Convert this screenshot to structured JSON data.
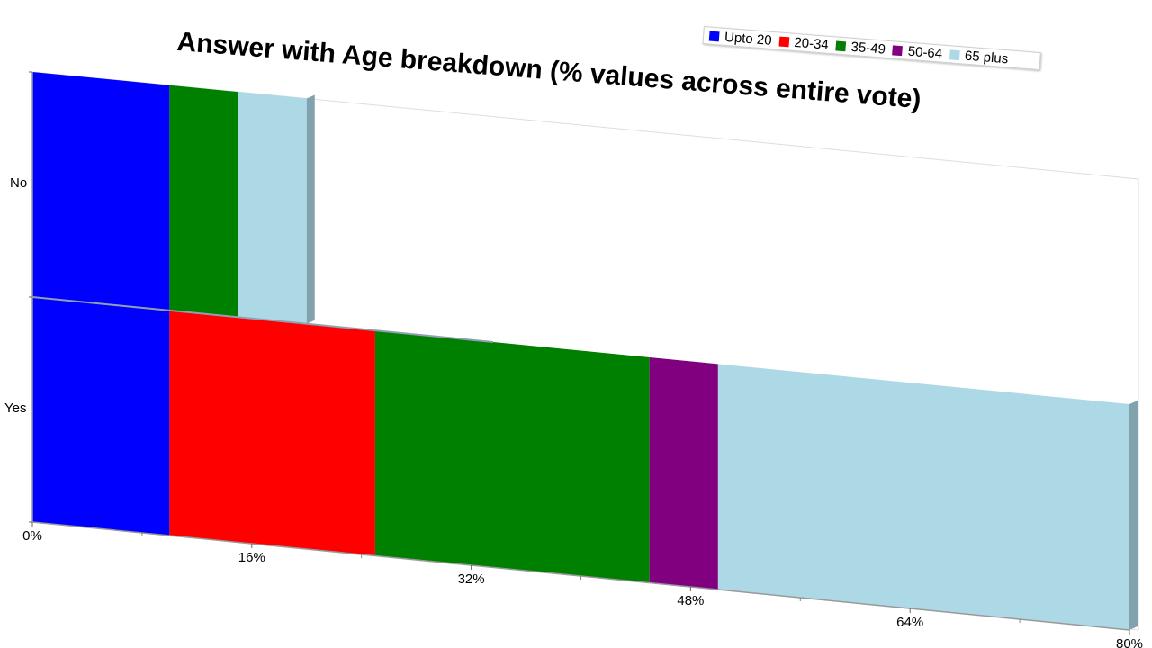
{
  "chart_data": {
    "type": "bar",
    "orientation": "horizontal",
    "stacked": true,
    "title": "Answer with Age breakdown (% values across entire vote)",
    "categories": [
      "Yes",
      "No"
    ],
    "series": [
      {
        "name": "Upto 20",
        "color": "#0000ff",
        "values": [
          10,
          10
        ]
      },
      {
        "name": "20-34",
        "color": "#ff0000",
        "values": [
          15,
          0
        ]
      },
      {
        "name": "35-49",
        "color": "#008000",
        "values": [
          20,
          5
        ]
      },
      {
        "name": "50-64",
        "color": "#800080",
        "values": [
          5,
          0
        ]
      },
      {
        "name": "65 plus",
        "color": "#add8e6",
        "values": [
          30,
          5
        ]
      }
    ],
    "xlim": [
      0,
      80
    ],
    "xticks": [
      "0%",
      "16%",
      "32%",
      "48%",
      "64%",
      "80%"
    ],
    "legend_position": "top-right",
    "grid": false
  }
}
